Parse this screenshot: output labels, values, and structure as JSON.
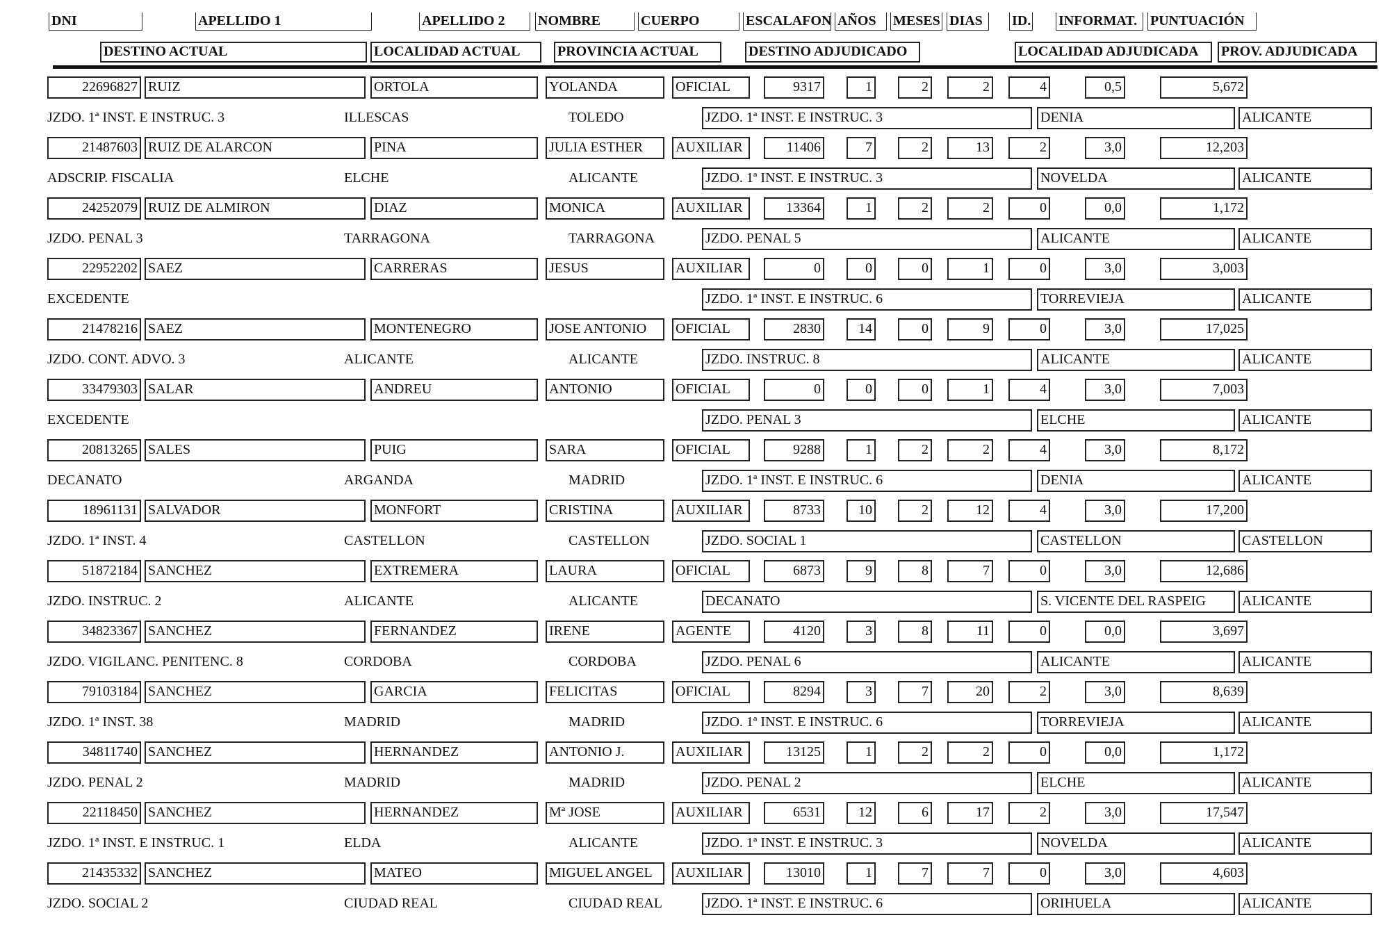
{
  "header": {
    "row1": [
      "DNI",
      "APELLIDO 1",
      "APELLIDO 2",
      "NOMBRE",
      "CUERPO",
      "ESCALAFON",
      "AÑOS",
      "MESES",
      "DIAS",
      "ID.",
      "INFORMAT.",
      "PUNTUACIÓN"
    ],
    "row2": [
      "DESTINO ACTUAL",
      "LOCALIDAD ACTUAL",
      "PROVINCIA ACTUAL",
      "DESTINO ADJUDICADO",
      "LOCALIDAD ADJUDICADA",
      "PROV. ADJUDICADA"
    ]
  },
  "records": [
    {
      "dni": "22696827",
      "ap1": "RUIZ",
      "ap2": "ORTOLA",
      "nombre": "YOLANDA",
      "cuerpo": "OFICIAL",
      "escalafon": "9317",
      "anos": "1",
      "meses": "2",
      "dias": "2",
      "id": "4",
      "informat": "0,5",
      "puntuacion": "5,672",
      "destino": "JZDO. 1ª INST. E INSTRUC. 3",
      "localidad": "ILLESCAS",
      "provincia": "TOLEDO",
      "destino_adj": "JZDO. 1ª INST. E INSTRUC. 3",
      "localidad_adj": "DENIA",
      "prov_adj": "ALICANTE"
    },
    {
      "dni": "21487603",
      "ap1": "RUIZ DE ALARCON",
      "ap2": "PINA",
      "nombre": "JULIA ESTHER",
      "cuerpo": "AUXILIAR",
      "escalafon": "11406",
      "anos": "7",
      "meses": "2",
      "dias": "13",
      "id": "2",
      "informat": "3,0",
      "puntuacion": "12,203",
      "destino": "ADSCRIP. FISCALIA",
      "localidad": "ELCHE",
      "provincia": "ALICANTE",
      "destino_adj": "JZDO. 1ª INST. E INSTRUC. 3",
      "localidad_adj": "NOVELDA",
      "prov_adj": "ALICANTE"
    },
    {
      "dni": "24252079",
      "ap1": "RUIZ DE ALMIRON",
      "ap2": "DIAZ",
      "nombre": "MONICA",
      "cuerpo": "AUXILIAR",
      "escalafon": "13364",
      "anos": "1",
      "meses": "2",
      "dias": "2",
      "id": "0",
      "informat": "0,0",
      "puntuacion": "1,172",
      "destino": "JZDO. PENAL 3",
      "localidad": "TARRAGONA",
      "provincia": "TARRAGONA",
      "destino_adj": "JZDO. PENAL 5",
      "localidad_adj": "ALICANTE",
      "prov_adj": "ALICANTE"
    },
    {
      "dni": "22952202",
      "ap1": "SAEZ",
      "ap2": "CARRERAS",
      "nombre": "JESUS",
      "cuerpo": "AUXILIAR",
      "escalafon": "0",
      "anos": "0",
      "meses": "0",
      "dias": "1",
      "id": "0",
      "informat": "3,0",
      "puntuacion": "3,003",
      "destino": "EXCEDENTE",
      "localidad": "",
      "provincia": "",
      "destino_adj": "JZDO. 1ª INST. E INSTRUC. 6",
      "localidad_adj": "TORREVIEJA",
      "prov_adj": "ALICANTE"
    },
    {
      "dni": "21478216",
      "ap1": "SAEZ",
      "ap2": "MONTENEGRO",
      "nombre": "JOSE ANTONIO",
      "cuerpo": "OFICIAL",
      "escalafon": "2830",
      "anos": "14",
      "meses": "0",
      "dias": "9",
      "id": "0",
      "informat": "3,0",
      "puntuacion": "17,025",
      "destino": "JZDO. CONT. ADVO. 3",
      "localidad": "ALICANTE",
      "provincia": "ALICANTE",
      "destino_adj": "JZDO. INSTRUC. 8",
      "localidad_adj": "ALICANTE",
      "prov_adj": "ALICANTE"
    },
    {
      "dni": "33479303",
      "ap1": "SALAR",
      "ap2": "ANDREU",
      "nombre": "ANTONIO",
      "cuerpo": "OFICIAL",
      "escalafon": "0",
      "anos": "0",
      "meses": "0",
      "dias": "1",
      "id": "4",
      "informat": "3,0",
      "puntuacion": "7,003",
      "destino": "EXCEDENTE",
      "localidad": "",
      "provincia": "",
      "destino_adj": "JZDO. PENAL 3",
      "localidad_adj": "ELCHE",
      "prov_adj": "ALICANTE"
    },
    {
      "dni": "20813265",
      "ap1": "SALES",
      "ap2": "PUIG",
      "nombre": "SARA",
      "cuerpo": "OFICIAL",
      "escalafon": "9288",
      "anos": "1",
      "meses": "2",
      "dias": "2",
      "id": "4",
      "informat": "3,0",
      "puntuacion": "8,172",
      "destino": "DECANATO",
      "localidad": "ARGANDA",
      "provincia": "MADRID",
      "destino_adj": "JZDO. 1ª INST. E INSTRUC. 6",
      "localidad_adj": "DENIA",
      "prov_adj": "ALICANTE"
    },
    {
      "dni": "18961131",
      "ap1": "SALVADOR",
      "ap2": "MONFORT",
      "nombre": "CRISTINA",
      "cuerpo": "AUXILIAR",
      "escalafon": "8733",
      "anos": "10",
      "meses": "2",
      "dias": "12",
      "id": "4",
      "informat": "3,0",
      "puntuacion": "17,200",
      "destino": "JZDO. 1ª INST. 4",
      "localidad": "CASTELLON",
      "provincia": "CASTELLON",
      "destino_adj": "JZDO. SOCIAL 1",
      "localidad_adj": "CASTELLON",
      "prov_adj": "CASTELLON"
    },
    {
      "dni": "51872184",
      "ap1": "SANCHEZ",
      "ap2": "EXTREMERA",
      "nombre": "LAURA",
      "cuerpo": "OFICIAL",
      "escalafon": "6873",
      "anos": "9",
      "meses": "8",
      "dias": "7",
      "id": "0",
      "informat": "3,0",
      "puntuacion": "12,686",
      "destino": "JZDO. INSTRUC. 2",
      "localidad": "ALICANTE",
      "provincia": "ALICANTE",
      "destino_adj": "DECANATO",
      "localidad_adj": "S. VICENTE DEL RASPEIG",
      "prov_adj": "ALICANTE"
    },
    {
      "dni": "34823367",
      "ap1": "SANCHEZ",
      "ap2": "FERNANDEZ",
      "nombre": "IRENE",
      "cuerpo": "AGENTE",
      "escalafon": "4120",
      "anos": "3",
      "meses": "8",
      "dias": "11",
      "id": "0",
      "informat": "0,0",
      "puntuacion": "3,697",
      "destino": "JZDO. VIGILANC. PENITENC. 8",
      "localidad": "CORDOBA",
      "provincia": "CORDOBA",
      "destino_adj": "JZDO. PENAL 6",
      "localidad_adj": "ALICANTE",
      "prov_adj": "ALICANTE"
    },
    {
      "dni": "79103184",
      "ap1": "SANCHEZ",
      "ap2": "GARCIA",
      "nombre": "FELICITAS",
      "cuerpo": "OFICIAL",
      "escalafon": "8294",
      "anos": "3",
      "meses": "7",
      "dias": "20",
      "id": "2",
      "informat": "3,0",
      "puntuacion": "8,639",
      "destino": "JZDO. 1ª INST. 38",
      "localidad": "MADRID",
      "provincia": "MADRID",
      "destino_adj": "JZDO. 1ª INST. E INSTRUC. 6",
      "localidad_adj": "TORREVIEJA",
      "prov_adj": "ALICANTE"
    },
    {
      "dni": "34811740",
      "ap1": "SANCHEZ",
      "ap2": "HERNANDEZ",
      "nombre": "ANTONIO J.",
      "cuerpo": "AUXILIAR",
      "escalafon": "13125",
      "anos": "1",
      "meses": "2",
      "dias": "2",
      "id": "0",
      "informat": "0,0",
      "puntuacion": "1,172",
      "destino": "JZDO. PENAL 2",
      "localidad": "MADRID",
      "provincia": "MADRID",
      "destino_adj": "JZDO. PENAL 2",
      "localidad_adj": "ELCHE",
      "prov_adj": "ALICANTE"
    },
    {
      "dni": "22118450",
      "ap1": "SANCHEZ",
      "ap2": "HERNANDEZ",
      "nombre": "Mª JOSE",
      "cuerpo": "AUXILIAR",
      "escalafon": "6531",
      "anos": "12",
      "meses": "6",
      "dias": "17",
      "id": "2",
      "informat": "3,0",
      "puntuacion": "17,547",
      "destino": "JZDO. 1ª INST. E INSTRUC. 1",
      "localidad": "ELDA",
      "provincia": "ALICANTE",
      "destino_adj": "JZDO. 1ª INST. E INSTRUC. 3",
      "localidad_adj": "NOVELDA",
      "prov_adj": "ALICANTE"
    },
    {
      "dni": "21435332",
      "ap1": "SANCHEZ",
      "ap2": "MATEO",
      "nombre": "MIGUEL ANGEL",
      "cuerpo": "AUXILIAR",
      "escalafon": "13010",
      "anos": "1",
      "meses": "7",
      "dias": "7",
      "id": "0",
      "informat": "3,0",
      "puntuacion": "4,603",
      "destino": "JZDO. SOCIAL 2",
      "localidad": "CIUDAD REAL",
      "provincia": "CIUDAD REAL",
      "destino_adj": "JZDO. 1ª INST. E INSTRUC. 6",
      "localidad_adj": "ORIHUELA",
      "prov_adj": "ALICANTE"
    }
  ]
}
